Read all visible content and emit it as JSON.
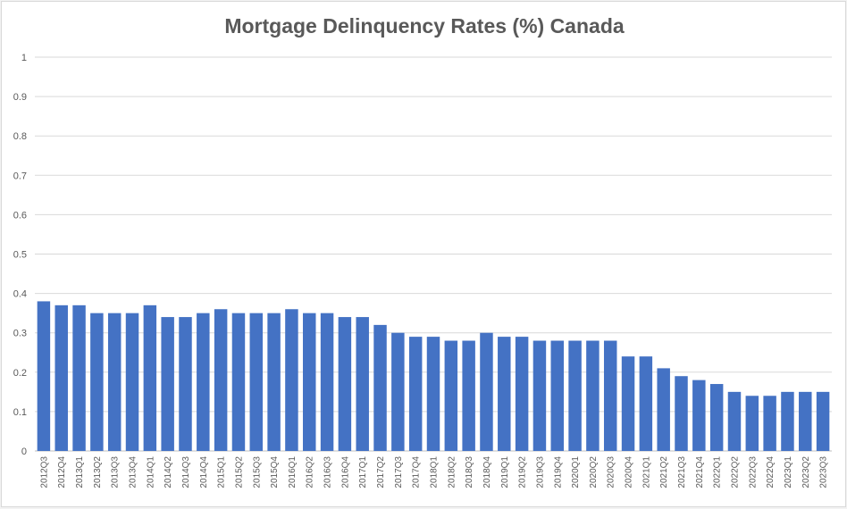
{
  "chart_data": {
    "type": "bar",
    "title": "Mortgage Delinquency Rates (%) Canada",
    "xlabel": "",
    "ylabel": "",
    "ylim": [
      0,
      1
    ],
    "yticks": [
      "0",
      "0.1",
      "0.2",
      "0.3",
      "0.4",
      "0.5",
      "0.6",
      "0.7",
      "0.8",
      "0.9",
      "1"
    ],
    "grid": true,
    "legend": "none",
    "bar_color": "#4472c4",
    "categories": [
      "2012Q3",
      "2012Q4",
      "2013Q1",
      "2013Q2",
      "2013Q3",
      "2013Q4",
      "2014Q1",
      "2014Q2",
      "2014Q3",
      "2014Q4",
      "2015Q1",
      "2015Q2",
      "2015Q3",
      "2015Q4",
      "2016Q1",
      "2016Q2",
      "2016Q3",
      "2016Q4",
      "2017Q1",
      "2017Q2",
      "2017Q3",
      "2017Q4",
      "2018Q1",
      "2018Q2",
      "2018Q3",
      "2018Q4",
      "2019Q1",
      "2019Q2",
      "2019Q3",
      "2019Q4",
      "2020Q1",
      "2020Q2",
      "2020Q3",
      "2020Q4",
      "2021Q1",
      "2021Q2",
      "2021Q3",
      "2021Q4",
      "2022Q1",
      "2022Q2",
      "2022Q3",
      "2022Q4",
      "2023Q1",
      "2023Q2",
      "2023Q3"
    ],
    "values": [
      0.38,
      0.37,
      0.37,
      0.35,
      0.35,
      0.35,
      0.37,
      0.34,
      0.34,
      0.35,
      0.36,
      0.35,
      0.35,
      0.35,
      0.36,
      0.35,
      0.35,
      0.34,
      0.34,
      0.32,
      0.3,
      0.29,
      0.29,
      0.28,
      0.28,
      0.3,
      0.29,
      0.29,
      0.28,
      0.28,
      0.28,
      0.28,
      0.28,
      0.24,
      0.24,
      0.21,
      0.19,
      0.18,
      0.17,
      0.15,
      0.14,
      0.14,
      0.15,
      0.15,
      0.15
    ]
  }
}
